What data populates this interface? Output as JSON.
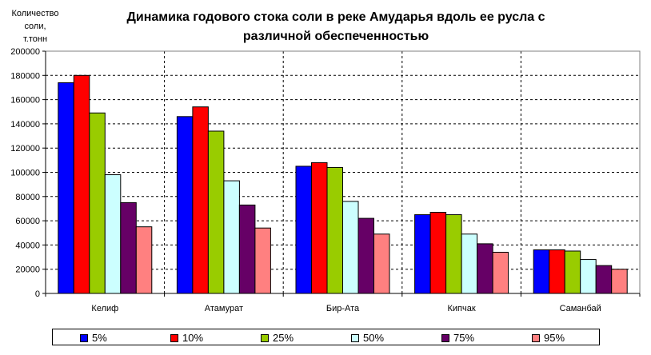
{
  "chart_data": {
    "type": "bar",
    "title": "Динамика годового стока соли в реке Амударья вдоль ее русла с различной обеспеченностью",
    "title_lines": [
      "Динамика годового стока соли в реке Амударья вдоль ее русла с",
      "различной обеспеченностью"
    ],
    "ylabel": "Количество соли, т.тонн",
    "ylabel_lines": [
      "Количество соли,",
      "т.тонн"
    ],
    "xlabel": "",
    "ylim": [
      0,
      200000
    ],
    "yticks": [
      0,
      20000,
      40000,
      60000,
      80000,
      100000,
      120000,
      140000,
      160000,
      180000,
      200000
    ],
    "ytick_labels": [
      "0",
      "20000",
      "40000",
      "60000",
      "80000",
      "100000",
      "120000",
      "140000",
      "160000",
      "180000",
      "200000"
    ],
    "grid": true,
    "legend_position": "bottom",
    "categories": [
      "Келиф",
      "Атамурат",
      "Бир-Ата",
      "Кипчак",
      "Саманбай"
    ],
    "series": [
      {
        "name": "5%",
        "color": "#0000ff",
        "values": [
          174000,
          146000,
          105000,
          65000,
          36000
        ]
      },
      {
        "name": "10%",
        "color": "#ff0000",
        "values": [
          180000,
          154000,
          108000,
          67000,
          36000
        ]
      },
      {
        "name": "25%",
        "color": "#99cc00",
        "values": [
          149000,
          134000,
          104000,
          65000,
          35000
        ]
      },
      {
        "name": "50%",
        "color": "#ccffff",
        "values": [
          98000,
          93000,
          76000,
          49000,
          28000
        ]
      },
      {
        "name": "75%",
        "color": "#660066",
        "values": [
          75000,
          73000,
          62000,
          41000,
          23000
        ]
      },
      {
        "name": "95%",
        "color": "#ff8080",
        "values": [
          55000,
          54000,
          49000,
          34000,
          20000
        ]
      }
    ]
  }
}
